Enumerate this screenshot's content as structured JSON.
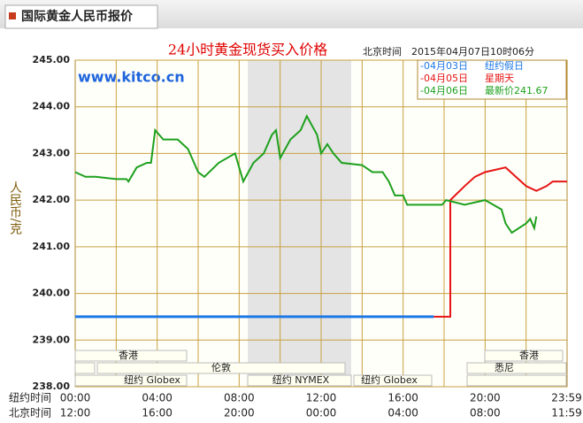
{
  "header": {
    "tab": "国际黄金人民币报价"
  },
  "chart_data": {
    "type": "line",
    "title": "24小时黄金现货买入价格",
    "subtitle": "北京时间　2015年04月07日10时06分",
    "watermark": "www.kitco.cn",
    "ylabel": "人民币/克",
    "ylim": [
      238,
      245
    ],
    "yticks": [
      {
        "value": 245,
        "label": "245.00"
      },
      {
        "value": 244,
        "label": "244.00"
      },
      {
        "value": 243,
        "label": "243.00"
      },
      {
        "value": 242,
        "label": "242.00"
      },
      {
        "value": 241,
        "label": "241.00"
      },
      {
        "value": 240,
        "label": "240.00"
      },
      {
        "value": 239,
        "label": "239.00"
      },
      {
        "value": 238,
        "label": "238.00"
      }
    ],
    "xlim": [
      0,
      24
    ],
    "xgrid": [
      2,
      6,
      10,
      14,
      18,
      22
    ],
    "grid": true,
    "x_axis_rows": [
      {
        "name": "纽约时间",
        "ticks": [
          {
            "value": 0,
            "label": "00:00"
          },
          {
            "value": 4,
            "label": "04:00"
          },
          {
            "value": 8,
            "label": "08:00"
          },
          {
            "value": 12,
            "label": "12:00"
          },
          {
            "value": 16,
            "label": "16:00"
          },
          {
            "value": 20,
            "label": "20:00"
          },
          {
            "value": 23.98,
            "label": "23:59"
          }
        ]
      },
      {
        "name": "北京时间",
        "ticks": [
          {
            "value": 0,
            "label": "12:00"
          },
          {
            "value": 4,
            "label": "16:00"
          },
          {
            "value": 8,
            "label": "20:00"
          },
          {
            "value": 12,
            "label": "00:00"
          },
          {
            "value": 16,
            "label": "04:00"
          },
          {
            "value": 20,
            "label": "08:00"
          },
          {
            "value": 23.98,
            "label": "11:59"
          }
        ]
      }
    ],
    "sessions": [
      "香港",
      "伦敦",
      "纽约 Globex",
      "纽约 NYMEX",
      "纽约 Globex",
      "悉尼",
      "香港"
    ],
    "series": [
      {
        "name": "-04月03日",
        "note": "纽约假日",
        "color": "#1e78e6",
        "x": [
          0,
          17.5
        ],
        "values": [
          239.5,
          239.5
        ]
      },
      {
        "name": "-04月05日",
        "note": "星期天",
        "color": "#e61414",
        "x": [
          17.5,
          18.3,
          18.3,
          19,
          19.5,
          20,
          20.5,
          21,
          21.5,
          22,
          22.5,
          23,
          23.3,
          24
        ],
        "values": [
          239.5,
          239.5,
          242.0,
          242.3,
          242.5,
          242.6,
          242.65,
          242.7,
          242.5,
          242.3,
          242.2,
          242.3,
          242.4,
          242.4
        ]
      },
      {
        "name": "-04月06日",
        "note": "最新价241.67",
        "color": "#1ea01e",
        "x": [
          0,
          0.5,
          1,
          2,
          2.5,
          2.6,
          3,
          3.5,
          3.7,
          3.9,
          4.3,
          5,
          5.5,
          6,
          6.3,
          7,
          7.8,
          8.2,
          8.7,
          9.2,
          9.6,
          9.8,
          10,
          10.5,
          11,
          11.3,
          11.8,
          12,
          12.3,
          12.6,
          13,
          14,
          14.5,
          15,
          15.3,
          15.6,
          16,
          16.2,
          17,
          17.9,
          18.1,
          19,
          20,
          20.4,
          20.8,
          21,
          21.3,
          22,
          22.2,
          22.4,
          22.5
        ],
        "values": [
          242.6,
          242.5,
          242.5,
          242.45,
          242.45,
          242.4,
          242.7,
          242.8,
          242.8,
          243.5,
          243.3,
          243.3,
          243.1,
          242.6,
          242.5,
          242.8,
          243.0,
          242.4,
          242.8,
          243.0,
          243.4,
          243.5,
          242.9,
          243.3,
          243.5,
          243.8,
          243.4,
          243.0,
          243.2,
          243.0,
          242.8,
          242.75,
          242.6,
          242.6,
          242.4,
          242.1,
          242.1,
          241.9,
          241.9,
          241.9,
          242.0,
          241.9,
          242.0,
          241.9,
          241.8,
          241.5,
          241.3,
          241.5,
          241.6,
          241.4,
          241.65
        ]
      }
    ]
  }
}
